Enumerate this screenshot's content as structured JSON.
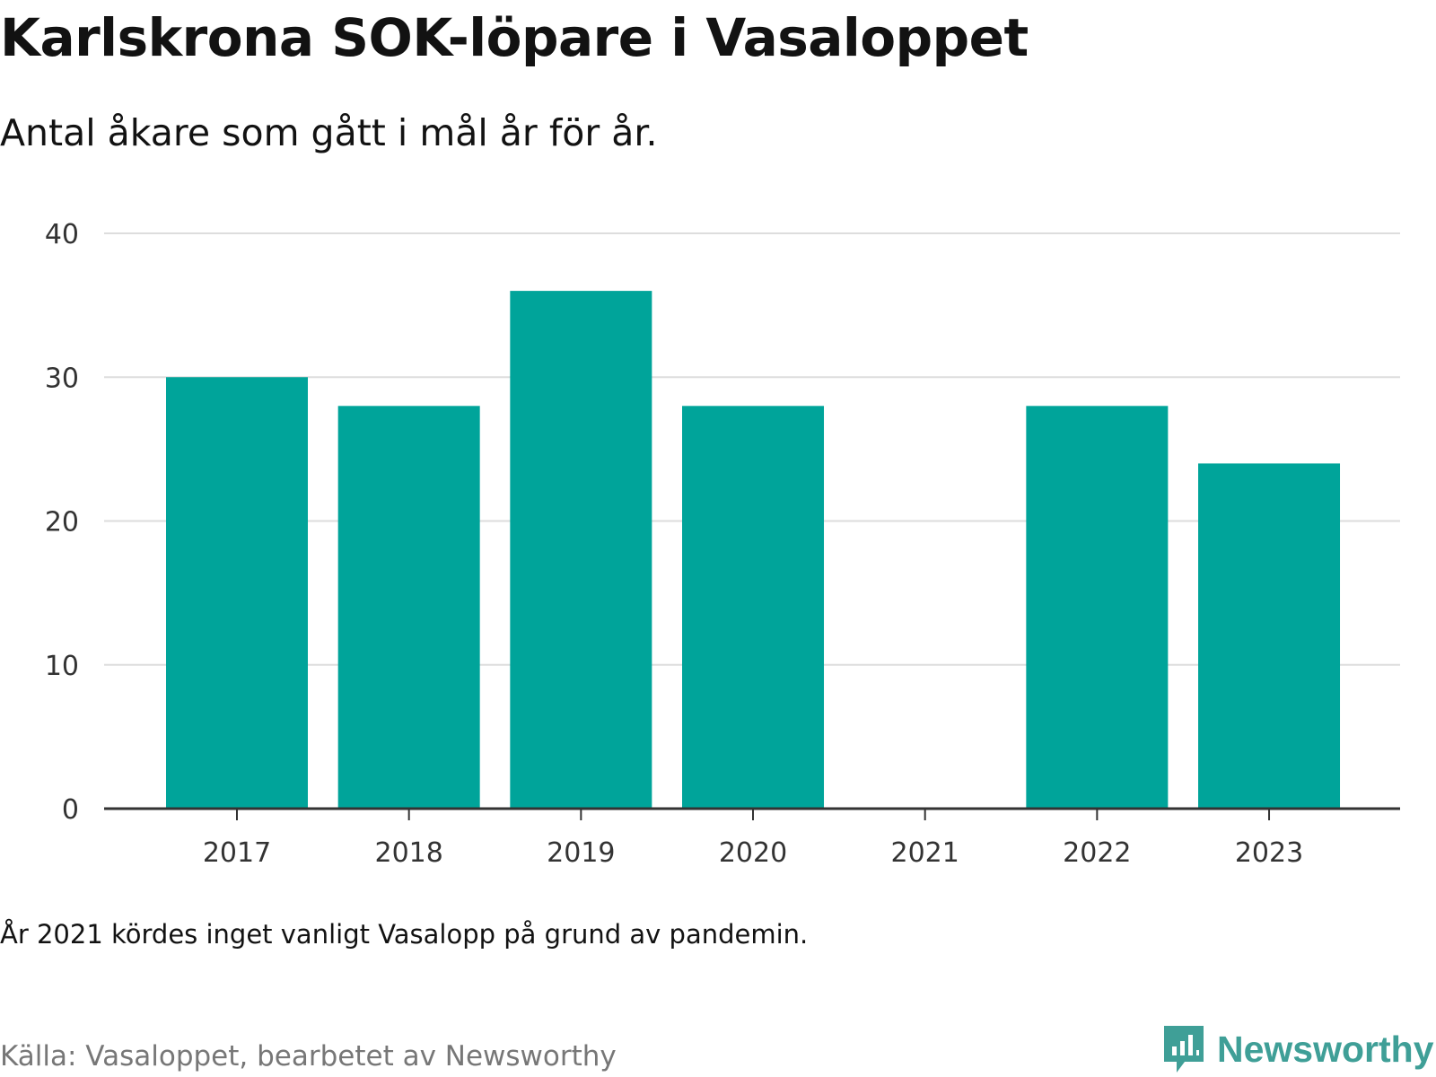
{
  "title": "Karlskrona SOK-löpare i Vasaloppet",
  "subtitle": "Antal åkare som gått i mål år för år.",
  "note": "År 2021 kördes inget vanligt Vasalopp på grund av pandemin.",
  "source": "Källa: Vasaloppet, bearbetet av Newsworthy",
  "logo": {
    "name": "Newsworthy",
    "icon": "newsworthy-logo-icon",
    "color": "#3f9f97"
  },
  "chart_data": {
    "type": "bar",
    "categories": [
      "2017",
      "2018",
      "2019",
      "2020",
      "2021",
      "2022",
      "2023"
    ],
    "values": [
      30,
      28,
      36,
      28,
      0,
      28,
      24
    ],
    "ylim": [
      0,
      40
    ],
    "yticks": [
      0,
      10,
      20,
      30,
      40
    ],
    "bar_color": "#00a49a",
    "grid": true,
    "legend": "none"
  }
}
